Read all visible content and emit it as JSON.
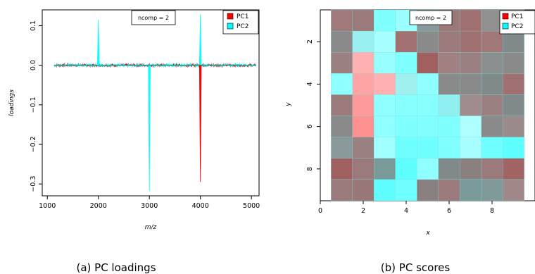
{
  "chart_data": [
    {
      "id": "loadings",
      "type": "line",
      "caption": "(a) PC loadings",
      "xlabel": "m/z",
      "ylabel": "loadings",
      "xlim": [
        900,
        5150
      ],
      "ylim": [
        -0.33,
        0.14
      ],
      "x_ticks": [
        1000,
        2000,
        3000,
        4000,
        5000
      ],
      "y_ticks": [
        0.1,
        0.0,
        -0.1,
        -0.2,
        -0.3
      ],
      "y_tick_labels": [
        "0.1",
        "0.0",
        "−0.1",
        "−0.2",
        "−0.3"
      ],
      "badge": "ncomp = 2",
      "legend_position": "top-right",
      "series": [
        {
          "name": "PC1",
          "color": "#ff0000",
          "peaks": [
            {
              "x": 4000,
              "y": -0.295
            }
          ]
        },
        {
          "name": "PC2",
          "color": "#00ffff",
          "peaks": [
            {
              "x": 2000,
              "y": 0.115
            },
            {
              "x": 3000,
              "y": -0.318
            },
            {
              "x": 4000,
              "y": 0.128
            }
          ]
        }
      ]
    },
    {
      "id": "scores",
      "type": "heatmap",
      "caption": "(b) PC scores",
      "xlabel": "x",
      "ylabel": "y",
      "xlim": [
        0,
        10
      ],
      "ylim": [
        0.5,
        9.5
      ],
      "x_ticks": [
        0,
        2,
        4,
        6,
        8
      ],
      "x_tick_labels": [
        "0",
        "2",
        "4",
        "6",
        "8"
      ],
      "y_ticks": [
        2,
        4,
        6,
        8
      ],
      "y_tick_labels": [
        "2",
        "4",
        "6",
        "8"
      ],
      "y_reversed": true,
      "badge": "ncomp = 2",
      "legend_position": "top-right",
      "legend": [
        {
          "name": "PC1",
          "color": "#ff0000"
        },
        {
          "name": "PC2",
          "color": "#00ffff"
        }
      ],
      "grid_colors": [
        [
          "#a07a7a",
          "#9a7a7a",
          "#80ffff",
          "#9cffff",
          "#8a9a9a",
          "#9a7878",
          "#a07070",
          "#909090",
          "#967b7b"
        ],
        [
          "#8a8a8a",
          "#9af0f0",
          "#a8ffff",
          "#a27272",
          "#8a8a8a",
          "#9a7a7a",
          "#a07070",
          "#a07878",
          "#808a8a"
        ],
        [
          "#9a8080",
          "#ffb0b0",
          "#9affff",
          "#80ffff",
          "#a06060",
          "#a08080",
          "#9a8080",
          "#8a9090",
          "#8a8a8a"
        ],
        [
          "#90ffff",
          "#ffa4a4",
          "#ffb0b0",
          "#a0f0f0",
          "#90ffff",
          "#8a8a8a",
          "#8a8a8a",
          "#808a8a",
          "#a07070"
        ],
        [
          "#9a7a7a",
          "#ff9a9a",
          "#90ffff",
          "#88ffff",
          "#88ffff",
          "#90f0f0",
          "#a08c8c",
          "#9a8080",
          "#808a8a"
        ],
        [
          "#8a8a8a",
          "#ff9090",
          "#90ffff",
          "#80ffff",
          "#80ffff",
          "#80ffff",
          "#b0ffff",
          "#8a8a8a",
          "#9a8a8a"
        ],
        [
          "#8a9a9a",
          "#9a8080",
          "#a0ffff",
          "#70ffff",
          "#70ffff",
          "#80ffff",
          "#a8ffff",
          "#70ffff",
          "#60ffff"
        ],
        [
          "#a06060",
          "#9a7a7a",
          "#7a9a9a",
          "#60ffff",
          "#90ffff",
          "#808a8a",
          "#8a8080",
          "#9a7a7a",
          "#a06464"
        ],
        [
          "#9a7a7a",
          "#9a7878",
          "#60ffff",
          "#70ffff",
          "#8a8080",
          "#9a7a7a",
          "#7a9a9a",
          "#809a9a",
          "#a08888"
        ]
      ]
    }
  ]
}
